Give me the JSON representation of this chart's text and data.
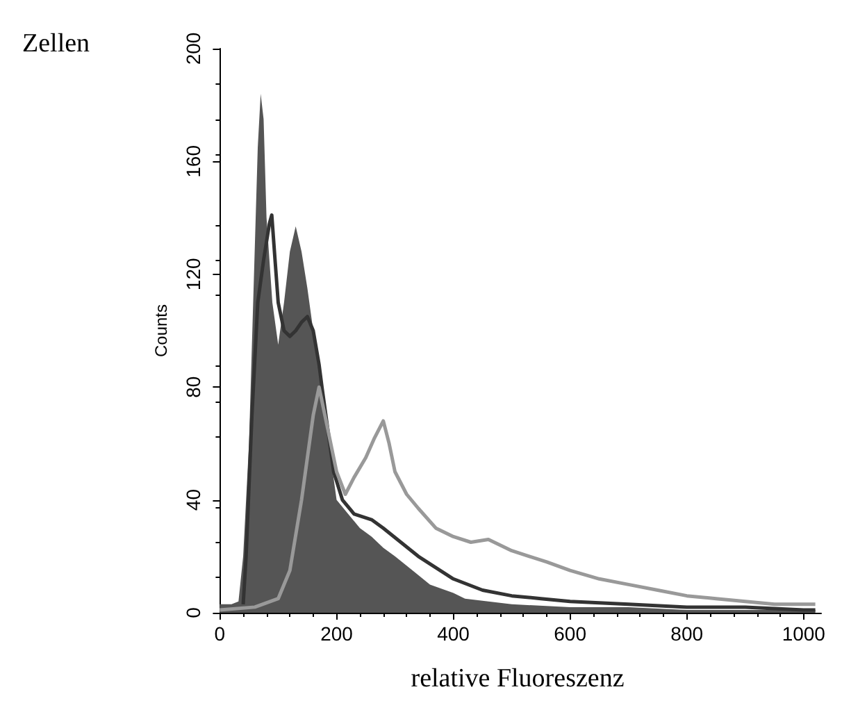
{
  "chart_data": {
    "type": "line",
    "xlabel": "relative Fluoreszenz",
    "ylabel": "Counts",
    "annotations": [
      "Zellen"
    ],
    "xlim": [
      -10,
      1030
    ],
    "ylim": [
      0,
      200
    ],
    "xticks": [
      0,
      200,
      400,
      600,
      800,
      1000
    ],
    "yticks": [
      0,
      40,
      80,
      120,
      160,
      200
    ],
    "grid": false,
    "marker": "none",
    "series": [
      {
        "type": "area",
        "color": "#555555",
        "x": [
          0,
          20,
          32,
          40,
          50,
          60,
          65,
          70,
          75,
          80,
          90,
          100,
          110,
          120,
          130,
          140,
          150,
          160,
          170,
          180,
          190,
          200,
          220,
          240,
          260,
          280,
          300,
          330,
          360,
          400,
          420,
          460,
          500,
          600,
          700,
          800,
          900,
          1000,
          1020
        ],
        "values": [
          3,
          3,
          4,
          20,
          60,
          130,
          165,
          184,
          175,
          140,
          110,
          95,
          110,
          128,
          137,
          128,
          115,
          100,
          85,
          70,
          55,
          40,
          35,
          30,
          27,
          23,
          20,
          15,
          10,
          7,
          5,
          4,
          3,
          2,
          2,
          1,
          1,
          1,
          1
        ]
      },
      {
        "color": "#333333",
        "x": [
          40,
          45,
          55,
          65,
          75,
          85,
          89,
          95,
          100,
          110,
          120,
          130,
          140,
          150,
          160,
          170,
          175,
          185,
          195,
          210,
          230,
          260,
          280,
          310,
          340,
          370,
          400,
          450,
          500,
          550,
          600,
          700,
          800,
          900,
          1000,
          1020
        ],
        "values": [
          3,
          20,
          70,
          110,
          125,
          138,
          141,
          124,
          110,
          100,
          98,
          100,
          103,
          105,
          100,
          88,
          80,
          65,
          50,
          40,
          35,
          33,
          30,
          25,
          20,
          16,
          12,
          8,
          6,
          5,
          4,
          3,
          2,
          2,
          1,
          1
        ]
      },
      {
        "color": "#999999",
        "x": [
          0,
          60,
          100,
          120,
          140,
          160,
          170,
          180,
          200,
          215,
          230,
          250,
          265,
          280,
          290,
          300,
          320,
          340,
          370,
          400,
          430,
          460,
          500,
          530,
          560,
          600,
          650,
          700,
          750,
          800,
          850,
          900,
          950,
          1000,
          1020
        ],
        "values": [
          1,
          2,
          5,
          15,
          40,
          70,
          80,
          70,
          50,
          42,
          48,
          55,
          62,
          68,
          60,
          50,
          42,
          37,
          30,
          27,
          25,
          26,
          22,
          20,
          18,
          15,
          12,
          10,
          8,
          6,
          5,
          4,
          3,
          3,
          3
        ]
      }
    ]
  }
}
